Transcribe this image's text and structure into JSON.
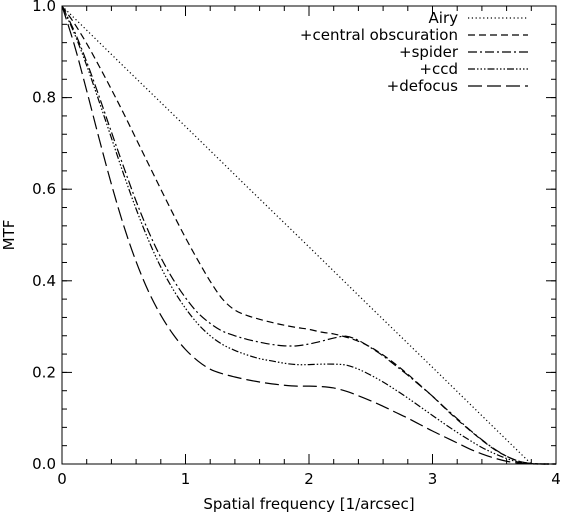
{
  "chart_data": {
    "type": "line",
    "xlabel": "Spatial frequency [1/arcsec]",
    "ylabel": "MTF",
    "xlim": [
      0,
      4
    ],
    "ylim": [
      0,
      1.0
    ],
    "x_ticks": [
      0,
      1,
      2,
      3,
      4
    ],
    "x_tick_labels": [
      "0",
      "1",
      "2",
      "3",
      "4"
    ],
    "y_ticks": [
      0.0,
      0.2,
      0.4,
      0.6,
      0.8,
      1.0
    ],
    "y_tick_labels": [
      "0.0",
      "0.2",
      "0.4",
      "0.6",
      "0.8",
      "1.0"
    ],
    "grid": false,
    "legend_position": "top-right",
    "series": [
      {
        "name": "Airy",
        "dash": "1.2,2.6",
        "x": [
          0.0,
          0.5,
          1.0,
          1.5,
          2.0,
          2.5,
          3.0,
          3.5,
          3.8,
          4.0
        ],
        "y": [
          1.0,
          0.868,
          0.737,
          0.605,
          0.474,
          0.342,
          0.211,
          0.079,
          0.0,
          0.0
        ]
      },
      {
        "name": "+central obscuration",
        "dash": "7,4",
        "x": [
          0.0,
          0.1,
          0.2,
          0.3,
          0.4,
          0.5,
          0.6,
          0.7,
          0.8,
          0.9,
          1.0,
          1.1,
          1.2,
          1.3,
          1.4,
          1.5,
          1.6,
          1.7,
          1.8,
          1.9,
          2.0,
          2.1,
          2.2,
          2.3,
          2.4,
          2.5,
          2.6,
          2.7,
          2.8,
          2.9,
          3.0,
          3.1,
          3.2,
          3.3,
          3.4,
          3.5,
          3.6,
          3.7,
          3.8,
          3.9,
          4.0
        ],
        "y": [
          1.0,
          0.962,
          0.918,
          0.869,
          0.818,
          0.765,
          0.71,
          0.655,
          0.6,
          0.546,
          0.494,
          0.445,
          0.399,
          0.36,
          0.336,
          0.324,
          0.316,
          0.309,
          0.303,
          0.298,
          0.294,
          0.288,
          0.284,
          0.277,
          0.268,
          0.255,
          0.238,
          0.218,
          0.196,
          0.172,
          0.148,
          0.122,
          0.097,
          0.074,
          0.052,
          0.032,
          0.017,
          0.006,
          0.001,
          0.0,
          0.0
        ]
      },
      {
        "name": "+spider",
        "dash": "9,3,2,3",
        "x": [
          0.0,
          0.1,
          0.2,
          0.3,
          0.4,
          0.5,
          0.6,
          0.7,
          0.8,
          0.9,
          1.0,
          1.1,
          1.2,
          1.3,
          1.4,
          1.5,
          1.6,
          1.7,
          1.8,
          1.9,
          2.0,
          2.1,
          2.2,
          2.3,
          2.4,
          2.5,
          2.6,
          2.7,
          2.8,
          2.9,
          3.0,
          3.1,
          3.2,
          3.3,
          3.4,
          3.5,
          3.6,
          3.7,
          3.8,
          3.9,
          4.0
        ],
        "y": [
          1.0,
          0.945,
          0.878,
          0.803,
          0.725,
          0.648,
          0.574,
          0.508,
          0.451,
          0.403,
          0.363,
          0.33,
          0.307,
          0.29,
          0.28,
          0.272,
          0.266,
          0.261,
          0.258,
          0.258,
          0.262,
          0.268,
          0.275,
          0.279,
          0.27,
          0.254,
          0.236,
          0.215,
          0.194,
          0.171,
          0.148,
          0.123,
          0.099,
          0.075,
          0.053,
          0.033,
          0.017,
          0.006,
          0.001,
          0.0,
          0.0
        ]
      },
      {
        "name": "+ccd",
        "dash": "7,2,1.5,2,1.5,2,1.5,2",
        "x": [
          0.0,
          0.1,
          0.2,
          0.3,
          0.4,
          0.5,
          0.6,
          0.7,
          0.8,
          0.9,
          1.0,
          1.1,
          1.2,
          1.3,
          1.4,
          1.5,
          1.6,
          1.7,
          1.8,
          1.9,
          2.0,
          2.1,
          2.2,
          2.3,
          2.4,
          2.5,
          2.6,
          2.7,
          2.8,
          2.9,
          3.0,
          3.1,
          3.2,
          3.3,
          3.4,
          3.5,
          3.6,
          3.7,
          3.8,
          3.9,
          4.0
        ],
        "y": [
          1.0,
          0.94,
          0.87,
          0.792,
          0.712,
          0.632,
          0.557,
          0.489,
          0.43,
          0.381,
          0.34,
          0.306,
          0.28,
          0.261,
          0.248,
          0.238,
          0.23,
          0.225,
          0.22,
          0.217,
          0.217,
          0.218,
          0.218,
          0.216,
          0.207,
          0.194,
          0.179,
          0.162,
          0.144,
          0.125,
          0.106,
          0.087,
          0.069,
          0.052,
          0.036,
          0.023,
          0.012,
          0.004,
          0.001,
          0.0,
          0.0
        ]
      },
      {
        "name": "+defocus",
        "dash": "14,5",
        "x": [
          0.0,
          0.1,
          0.2,
          0.3,
          0.4,
          0.5,
          0.6,
          0.7,
          0.8,
          0.9,
          1.0,
          1.1,
          1.2,
          1.3,
          1.4,
          1.5,
          1.6,
          1.7,
          1.8,
          1.9,
          2.0,
          2.1,
          2.2,
          2.3,
          2.4,
          2.5,
          2.6,
          2.7,
          2.8,
          2.9,
          3.0,
          3.1,
          3.2,
          3.3,
          3.4,
          3.5,
          3.6,
          3.7,
          3.8,
          3.9,
          4.0
        ],
        "y": [
          1.0,
          0.915,
          0.815,
          0.711,
          0.611,
          0.52,
          0.442,
          0.377,
          0.325,
          0.283,
          0.25,
          0.225,
          0.207,
          0.197,
          0.19,
          0.184,
          0.179,
          0.175,
          0.172,
          0.17,
          0.17,
          0.169,
          0.166,
          0.159,
          0.149,
          0.138,
          0.126,
          0.113,
          0.1,
          0.086,
          0.072,
          0.059,
          0.046,
          0.033,
          0.022,
          0.013,
          0.006,
          0.002,
          0.0,
          0.0,
          0.0
        ]
      }
    ]
  }
}
